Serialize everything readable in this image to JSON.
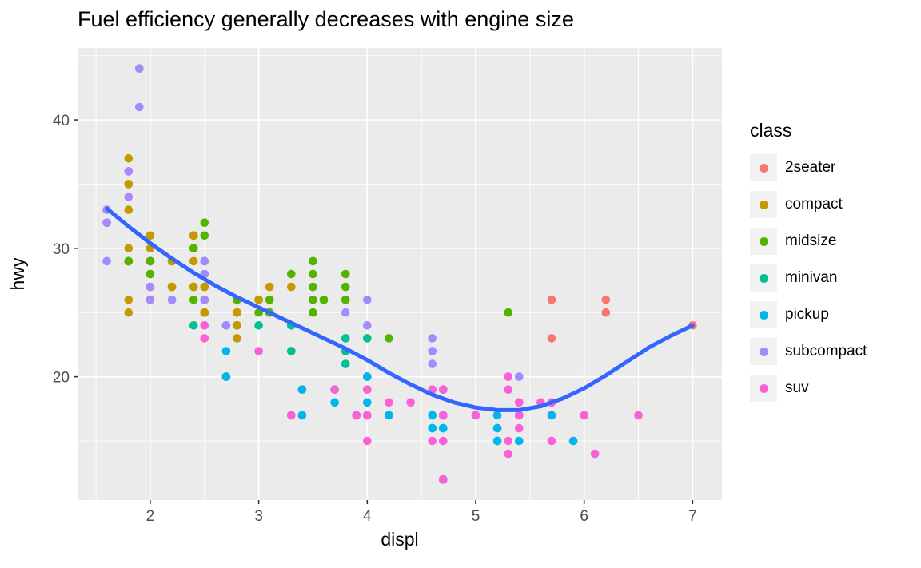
{
  "chart_data": {
    "type": "scatter",
    "title": "Fuel efficiency generally decreases with engine size",
    "xlabel": "displ",
    "ylabel": "hwy",
    "xlim": [
      1.33,
      7.27
    ],
    "ylim": [
      10.4,
      45.6
    ],
    "x_ticks": [
      2,
      3,
      4,
      5,
      6,
      7
    ],
    "y_ticks": [
      20,
      30,
      40
    ],
    "x_minor_ticks": [
      1.5,
      2.5,
      3.5,
      4.5,
      5.5,
      6.5
    ],
    "y_minor_ticks": [
      15,
      25,
      35,
      45
    ],
    "grid": true,
    "panel_bg": "#EBEBEB",
    "grid_color": "#FFFFFF",
    "tick_label_color": "#4D4D4D",
    "legend": {
      "title": "class",
      "position": "right",
      "entries": [
        {
          "label": "2seater",
          "color": "#F8766D"
        },
        {
          "label": "compact",
          "color": "#C49A00"
        },
        {
          "label": "midsize",
          "color": "#53B400"
        },
        {
          "label": "minivan",
          "color": "#00C094"
        },
        {
          "label": "pickup",
          "color": "#00B6EB"
        },
        {
          "label": "subcompact",
          "color": "#A58AFF"
        },
        {
          "label": "suv",
          "color": "#FB61D7"
        }
      ]
    },
    "smooth_line": {
      "color": "#3366FF",
      "width": 5,
      "points": [
        [
          1.6,
          33.1
        ],
        [
          1.8,
          31.7
        ],
        [
          2.0,
          30.4
        ],
        [
          2.2,
          29.2
        ],
        [
          2.4,
          28.1
        ],
        [
          2.6,
          27.1
        ],
        [
          2.8,
          26.2
        ],
        [
          3.0,
          25.4
        ],
        [
          3.2,
          24.6
        ],
        [
          3.4,
          23.8
        ],
        [
          3.6,
          23.0
        ],
        [
          3.8,
          22.2
        ],
        [
          4.0,
          21.3
        ],
        [
          4.2,
          20.3
        ],
        [
          4.4,
          19.4
        ],
        [
          4.6,
          18.6
        ],
        [
          4.8,
          18.0
        ],
        [
          5.0,
          17.6
        ],
        [
          5.2,
          17.4
        ],
        [
          5.4,
          17.4
        ],
        [
          5.6,
          17.7
        ],
        [
          5.8,
          18.3
        ],
        [
          6.0,
          19.1
        ],
        [
          6.2,
          20.1
        ],
        [
          6.4,
          21.2
        ],
        [
          6.6,
          22.3
        ],
        [
          6.8,
          23.2
        ],
        [
          7.0,
          24.0
        ]
      ]
    },
    "point_fields": [
      "displ",
      "hwy",
      "class"
    ],
    "points": [
      [
        1.8,
        29,
        "compact"
      ],
      [
        1.8,
        29,
        "compact"
      ],
      [
        2.0,
        31,
        "compact"
      ],
      [
        2.0,
        30,
        "compact"
      ],
      [
        2.8,
        26,
        "compact"
      ],
      [
        2.8,
        26,
        "compact"
      ],
      [
        3.1,
        27,
        "compact"
      ],
      [
        1.8,
        26,
        "compact"
      ],
      [
        1.8,
        25,
        "compact"
      ],
      [
        2.0,
        28,
        "compact"
      ],
      [
        2.0,
        27,
        "compact"
      ],
      [
        2.8,
        25,
        "compact"
      ],
      [
        2.8,
        25,
        "compact"
      ],
      [
        3.1,
        25,
        "compact"
      ],
      [
        3.1,
        25,
        "compact"
      ],
      [
        2.8,
        24,
        "midsize"
      ],
      [
        3.1,
        25,
        "midsize"
      ],
      [
        4.2,
        23,
        "midsize"
      ],
      [
        5.3,
        20,
        "suv"
      ],
      [
        5.3,
        15,
        "suv"
      ],
      [
        5.3,
        20,
        "suv"
      ],
      [
        5.7,
        17,
        "suv"
      ],
      [
        6.0,
        17,
        "suv"
      ],
      [
        5.7,
        26,
        "2seater"
      ],
      [
        5.7,
        23,
        "2seater"
      ],
      [
        6.2,
        26,
        "2seater"
      ],
      [
        6.2,
        25,
        "2seater"
      ],
      [
        7.0,
        24,
        "2seater"
      ],
      [
        5.3,
        19,
        "suv"
      ],
      [
        5.3,
        14,
        "suv"
      ],
      [
        5.7,
        15,
        "suv"
      ],
      [
        6.5,
        17,
        "suv"
      ],
      [
        2.4,
        27,
        "midsize"
      ],
      [
        2.4,
        30,
        "midsize"
      ],
      [
        3.1,
        26,
        "midsize"
      ],
      [
        3.5,
        29,
        "midsize"
      ],
      [
        3.6,
        26,
        "midsize"
      ],
      [
        2.4,
        24,
        "minivan"
      ],
      [
        3.0,
        24,
        "minivan"
      ],
      [
        3.3,
        22,
        "minivan"
      ],
      [
        3.3,
        22,
        "minivan"
      ],
      [
        3.3,
        24,
        "minivan"
      ],
      [
        3.3,
        24,
        "minivan"
      ],
      [
        3.3,
        17,
        "minivan"
      ],
      [
        3.8,
        22,
        "minivan"
      ],
      [
        3.8,
        21,
        "minivan"
      ],
      [
        3.8,
        23,
        "minivan"
      ],
      [
        4.0,
        23,
        "minivan"
      ],
      [
        3.7,
        19,
        "pickup"
      ],
      [
        3.7,
        18,
        "pickup"
      ],
      [
        3.9,
        17,
        "pickup"
      ],
      [
        3.9,
        17,
        "pickup"
      ],
      [
        4.7,
        19,
        "pickup"
      ],
      [
        4.7,
        19,
        "pickup"
      ],
      [
        4.7,
        12,
        "pickup"
      ],
      [
        5.2,
        17,
        "pickup"
      ],
      [
        5.2,
        15,
        "pickup"
      ],
      [
        3.9,
        17,
        "suv"
      ],
      [
        4.7,
        17,
        "suv"
      ],
      [
        4.7,
        12,
        "suv"
      ],
      [
        4.7,
        17,
        "suv"
      ],
      [
        5.2,
        16,
        "suv"
      ],
      [
        5.7,
        18,
        "suv"
      ],
      [
        5.9,
        15,
        "suv"
      ],
      [
        4.7,
        16,
        "pickup"
      ],
      [
        4.7,
        12,
        "pickup"
      ],
      [
        4.7,
        17,
        "pickup"
      ],
      [
        4.7,
        17,
        "pickup"
      ],
      [
        4.7,
        16,
        "pickup"
      ],
      [
        4.7,
        12,
        "pickup"
      ],
      [
        5.2,
        15,
        "pickup"
      ],
      [
        5.2,
        16,
        "pickup"
      ],
      [
        5.7,
        17,
        "pickup"
      ],
      [
        5.9,
        15,
        "pickup"
      ],
      [
        4.6,
        17,
        "suv"
      ],
      [
        5.4,
        17,
        "suv"
      ],
      [
        5.4,
        18,
        "suv"
      ],
      [
        4.0,
        17,
        "suv"
      ],
      [
        4.0,
        17,
        "suv"
      ],
      [
        4.0,
        17,
        "suv"
      ],
      [
        4.0,
        19,
        "suv"
      ],
      [
        4.6,
        19,
        "suv"
      ],
      [
        5.0,
        17,
        "suv"
      ],
      [
        4.2,
        17,
        "pickup"
      ],
      [
        4.2,
        17,
        "pickup"
      ],
      [
        4.6,
        16,
        "pickup"
      ],
      [
        4.6,
        16,
        "pickup"
      ],
      [
        4.6,
        17,
        "pickup"
      ],
      [
        5.4,
        15,
        "pickup"
      ],
      [
        5.4,
        17,
        "pickup"
      ],
      [
        3.8,
        26,
        "subcompact"
      ],
      [
        3.8,
        25,
        "subcompact"
      ],
      [
        4.0,
        26,
        "subcompact"
      ],
      [
        4.0,
        24,
        "subcompact"
      ],
      [
        4.6,
        21,
        "subcompact"
      ],
      [
        4.6,
        22,
        "subcompact"
      ],
      [
        4.6,
        23,
        "subcompact"
      ],
      [
        4.6,
        22,
        "subcompact"
      ],
      [
        5.4,
        20,
        "subcompact"
      ],
      [
        1.6,
        33,
        "subcompact"
      ],
      [
        1.6,
        32,
        "subcompact"
      ],
      [
        1.6,
        32,
        "subcompact"
      ],
      [
        1.6,
        29,
        "subcompact"
      ],
      [
        1.6,
        32,
        "subcompact"
      ],
      [
        1.8,
        34,
        "subcompact"
      ],
      [
        1.8,
        36,
        "subcompact"
      ],
      [
        1.8,
        36,
        "subcompact"
      ],
      [
        2.0,
        29,
        "subcompact"
      ],
      [
        2.4,
        26,
        "midsize"
      ],
      [
        2.4,
        27,
        "midsize"
      ],
      [
        2.4,
        30,
        "midsize"
      ],
      [
        2.4,
        31,
        "midsize"
      ],
      [
        2.5,
        26,
        "midsize"
      ],
      [
        2.5,
        26,
        "midsize"
      ],
      [
        3.3,
        28,
        "midsize"
      ],
      [
        2.0,
        26,
        "subcompact"
      ],
      [
        2.0,
        29,
        "subcompact"
      ],
      [
        2.0,
        28,
        "subcompact"
      ],
      [
        2.0,
        27,
        "subcompact"
      ],
      [
        2.7,
        24,
        "subcompact"
      ],
      [
        2.7,
        24,
        "subcompact"
      ],
      [
        2.7,
        24,
        "subcompact"
      ],
      [
        3.0,
        22,
        "suv"
      ],
      [
        3.7,
        19,
        "suv"
      ],
      [
        4.0,
        20,
        "suv"
      ],
      [
        4.7,
        17,
        "suv"
      ],
      [
        4.7,
        12,
        "suv"
      ],
      [
        4.7,
        19,
        "suv"
      ],
      [
        5.7,
        18,
        "suv"
      ],
      [
        6.1,
        14,
        "suv"
      ],
      [
        4.0,
        15,
        "suv"
      ],
      [
        4.2,
        18,
        "suv"
      ],
      [
        4.4,
        18,
        "suv"
      ],
      [
        4.6,
        15,
        "suv"
      ],
      [
        5.4,
        17,
        "suv"
      ],
      [
        5.4,
        16,
        "suv"
      ],
      [
        5.4,
        18,
        "suv"
      ],
      [
        4.0,
        17,
        "suv"
      ],
      [
        4.0,
        19,
        "suv"
      ],
      [
        4.6,
        19,
        "suv"
      ],
      [
        5.0,
        17,
        "suv"
      ],
      [
        2.4,
        29,
        "compact"
      ],
      [
        2.4,
        27,
        "compact"
      ],
      [
        2.5,
        31,
        "midsize"
      ],
      [
        2.5,
        32,
        "midsize"
      ],
      [
        3.5,
        27,
        "midsize"
      ],
      [
        3.5,
        26,
        "midsize"
      ],
      [
        3.0,
        26,
        "midsize"
      ],
      [
        3.0,
        25,
        "midsize"
      ],
      [
        3.5,
        25,
        "midsize"
      ],
      [
        3.3,
        17,
        "suv"
      ],
      [
        3.3,
        17,
        "suv"
      ],
      [
        4.0,
        20,
        "suv"
      ],
      [
        5.6,
        18,
        "suv"
      ],
      [
        3.1,
        26,
        "midsize"
      ],
      [
        3.8,
        26,
        "midsize"
      ],
      [
        3.8,
        27,
        "midsize"
      ],
      [
        3.8,
        28,
        "midsize"
      ],
      [
        5.3,
        25,
        "midsize"
      ],
      [
        2.5,
        25,
        "suv"
      ],
      [
        2.5,
        24,
        "suv"
      ],
      [
        2.5,
        27,
        "suv"
      ],
      [
        2.5,
        25,
        "suv"
      ],
      [
        2.5,
        26,
        "suv"
      ],
      [
        2.5,
        23,
        "suv"
      ],
      [
        2.2,
        26,
        "subcompact"
      ],
      [
        2.2,
        26,
        "subcompact"
      ],
      [
        2.5,
        26,
        "subcompact"
      ],
      [
        2.5,
        26,
        "subcompact"
      ],
      [
        2.5,
        25,
        "compact"
      ],
      [
        2.5,
        27,
        "compact"
      ],
      [
        2.5,
        25,
        "compact"
      ],
      [
        2.5,
        27,
        "compact"
      ],
      [
        2.7,
        20,
        "suv"
      ],
      [
        2.7,
        20,
        "suv"
      ],
      [
        3.4,
        19,
        "suv"
      ],
      [
        3.4,
        17,
        "suv"
      ],
      [
        4.0,
        20,
        "suv"
      ],
      [
        4.7,
        17,
        "suv"
      ],
      [
        2.2,
        29,
        "midsize"
      ],
      [
        2.2,
        27,
        "midsize"
      ],
      [
        2.4,
        31,
        "midsize"
      ],
      [
        2.4,
        31,
        "midsize"
      ],
      [
        3.0,
        26,
        "midsize"
      ],
      [
        3.0,
        26,
        "midsize"
      ],
      [
        3.5,
        28,
        "midsize"
      ],
      [
        2.2,
        27,
        "compact"
      ],
      [
        2.2,
        29,
        "compact"
      ],
      [
        2.4,
        31,
        "compact"
      ],
      [
        2.4,
        31,
        "compact"
      ],
      [
        3.0,
        26,
        "compact"
      ],
      [
        3.0,
        26,
        "compact"
      ],
      [
        3.3,
        27,
        "compact"
      ],
      [
        1.8,
        30,
        "compact"
      ],
      [
        1.8,
        33,
        "compact"
      ],
      [
        1.8,
        35,
        "compact"
      ],
      [
        1.8,
        37,
        "compact"
      ],
      [
        1.8,
        35,
        "compact"
      ],
      [
        4.7,
        15,
        "suv"
      ],
      [
        5.7,
        18,
        "suv"
      ],
      [
        2.7,
        20,
        "pickup"
      ],
      [
        2.7,
        20,
        "pickup"
      ],
      [
        2.7,
        22,
        "pickup"
      ],
      [
        3.4,
        17,
        "pickup"
      ],
      [
        3.4,
        19,
        "pickup"
      ],
      [
        4.0,
        18,
        "pickup"
      ],
      [
        4.0,
        20,
        "pickup"
      ],
      [
        2.0,
        29,
        "compact"
      ],
      [
        2.0,
        26,
        "compact"
      ],
      [
        2.0,
        29,
        "compact"
      ],
      [
        2.0,
        29,
        "compact"
      ],
      [
        2.8,
        24,
        "compact"
      ],
      [
        1.9,
        44,
        "compact"
      ],
      [
        2.0,
        29,
        "compact"
      ],
      [
        2.0,
        26,
        "compact"
      ],
      [
        2.0,
        29,
        "compact"
      ],
      [
        2.0,
        29,
        "compact"
      ],
      [
        2.5,
        29,
        "compact"
      ],
      [
        2.5,
        29,
        "compact"
      ],
      [
        2.8,
        23,
        "compact"
      ],
      [
        2.8,
        24,
        "compact"
      ],
      [
        1.9,
        44,
        "subcompact"
      ],
      [
        1.9,
        41,
        "subcompact"
      ],
      [
        2.0,
        29,
        "subcompact"
      ],
      [
        2.0,
        26,
        "subcompact"
      ],
      [
        2.5,
        28,
        "subcompact"
      ],
      [
        2.5,
        29,
        "subcompact"
      ],
      [
        1.8,
        29,
        "midsize"
      ],
      [
        1.8,
        29,
        "midsize"
      ],
      [
        2.0,
        28,
        "midsize"
      ],
      [
        2.0,
        29,
        "midsize"
      ],
      [
        2.8,
        26,
        "midsize"
      ],
      [
        2.8,
        26,
        "midsize"
      ],
      [
        3.6,
        26,
        "midsize"
      ]
    ]
  }
}
